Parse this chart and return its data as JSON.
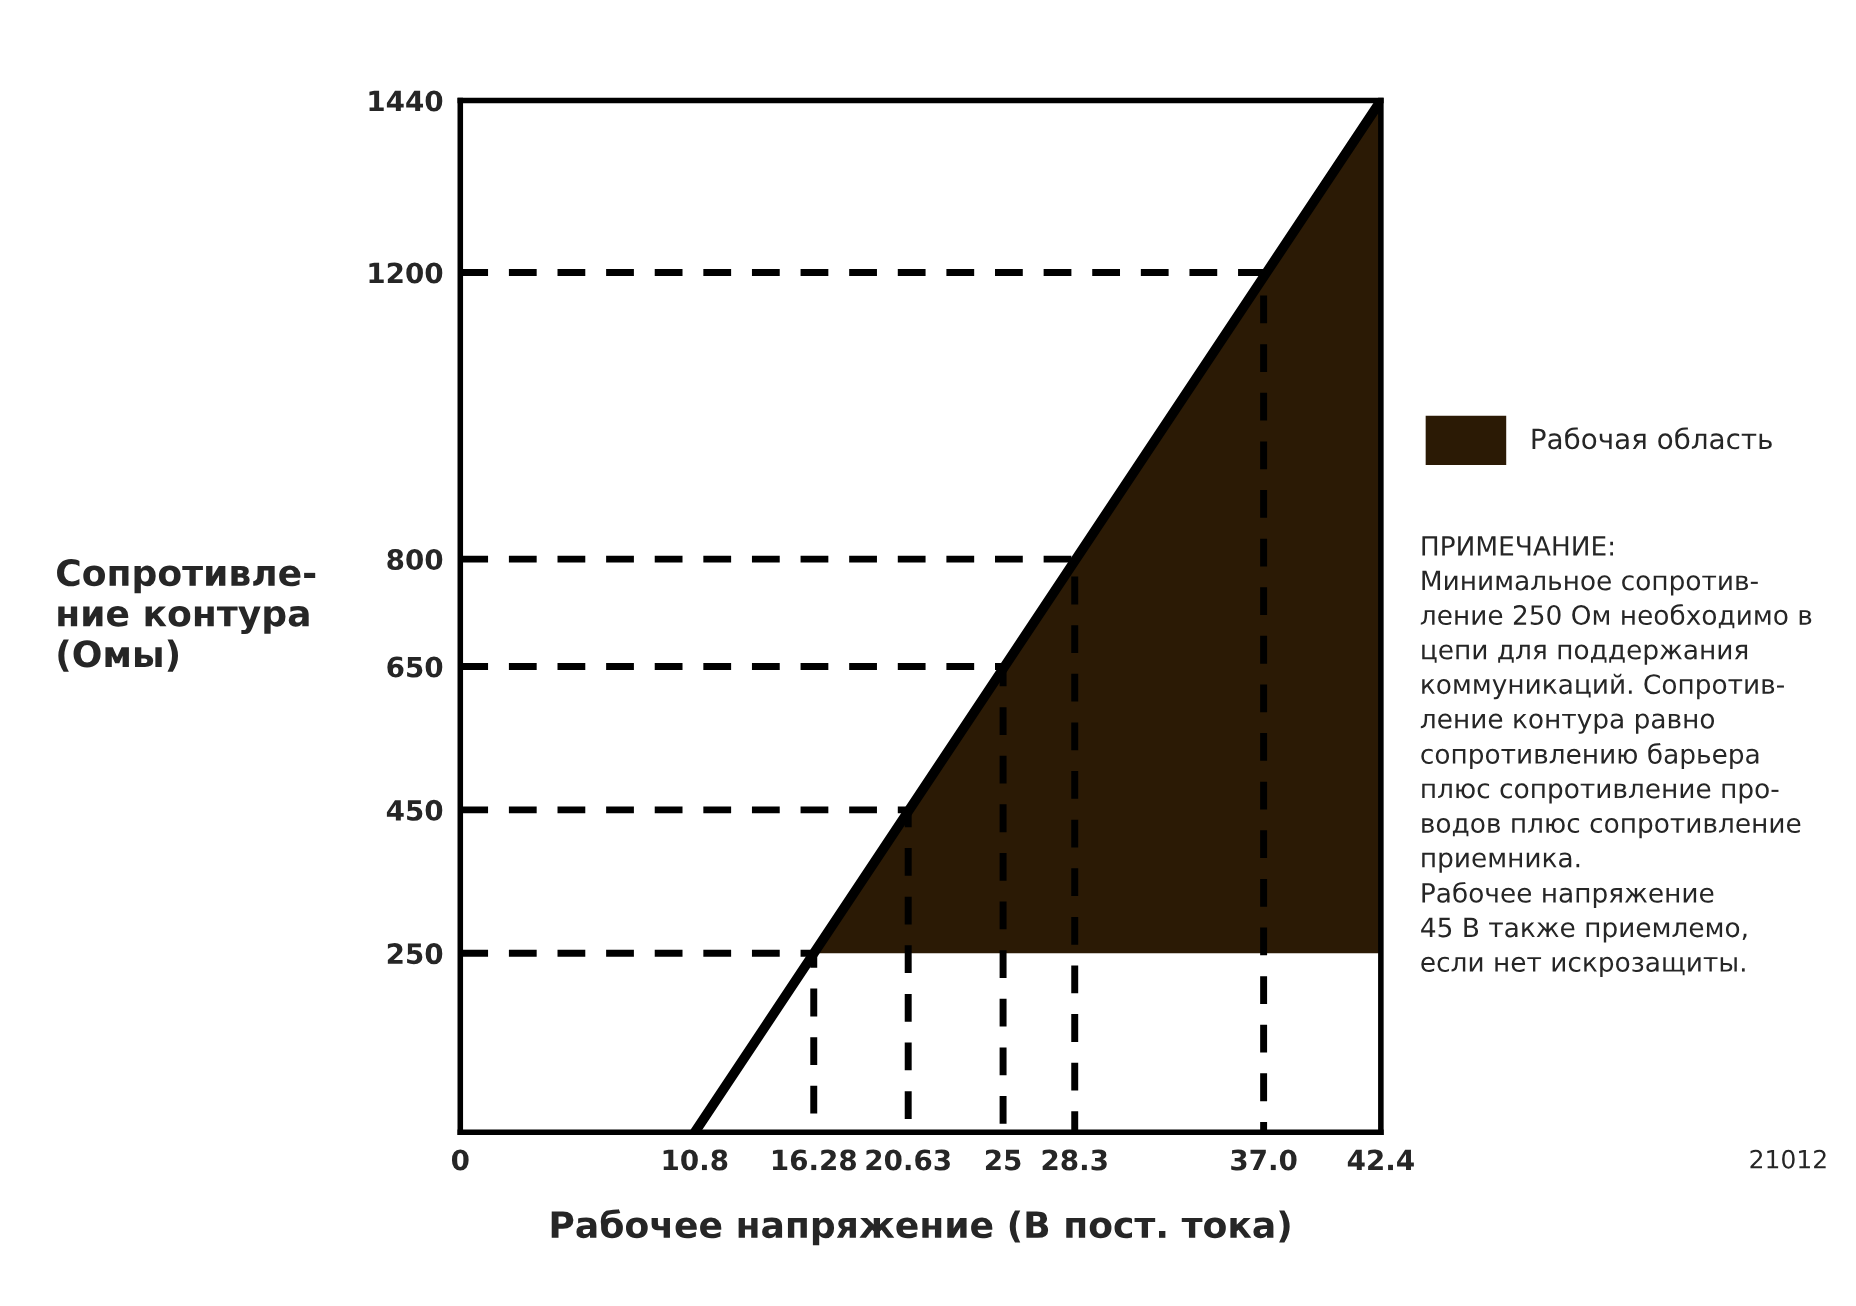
{
  "chart_data": {
    "type": "line",
    "xlabel": "Рабочее напряжение (В пост. тока)",
    "ylabel": "Сопротивле-\nние контура\n(Омы)",
    "xlim": [
      0,
      42.4
    ],
    "ylim": [
      0,
      1440
    ],
    "xticks": [
      0,
      10.8,
      16.28,
      20.63,
      25,
      {
        "value": 28.3,
        "label": "28.3"
      },
      {
        "value": 37,
        "label": "37.0"
      },
      42.4
    ],
    "yticks": [
      250,
      450,
      650,
      800,
      1200,
      1440
    ],
    "grid": false,
    "legend": "right",
    "marker": "none",
    "series": [
      {
        "name": "Рабочая область",
        "type": "area",
        "color": "#2b1a05",
        "x": [
          16.28,
          42.4,
          42.4
        ],
        "values": [
          250,
          1440,
          250
        ]
      },
      {
        "color": "#000000",
        "line_style": "solid",
        "x": [
          10.8,
          42.4
        ],
        "values": [
          0,
          1440
        ]
      },
      {
        "type": "line",
        "color": "#000000",
        "line_style": "dashed",
        "x": [
          0,
          16.28,
          16.28
        ],
        "values": [
          250,
          250,
          0
        ]
      },
      {
        "type": "line",
        "color": "#000000",
        "line_style": "dashed",
        "x": [
          0,
          20.63,
          20.63
        ],
        "values": [
          450,
          450,
          0
        ]
      },
      {
        "type": "line",
        "color": "#000000",
        "line_style": "dashed",
        "x": [
          0,
          25,
          25
        ],
        "values": [
          650,
          650,
          0
        ]
      },
      {
        "type": "line",
        "color": "#000000",
        "line_style": "dashed",
        "x": [
          0,
          28.3,
          28.3
        ],
        "values": [
          800,
          800,
          0
        ]
      },
      {
        "type": "line",
        "color": "#000000",
        "line_style": "dashed",
        "x": [
          0,
          37,
          37
        ],
        "values": [
          1200,
          1200,
          0
        ]
      }
    ],
    "annotations": [
      "ПРИМЕЧАНИЕ:\nМинимальное сопротив-\nление 250 Ом необходимо в\nцепи для поддержания\nкоммуникаций. Сопротив-\nление контура равно\nсопротивлению барьера\nплюс сопротивление про-\nводов плюс сопротивление\nприемника.\nРабочее напряжение\n45 В также приемлемо,\nесли нет искрозащиты.",
      "21012"
    ]
  }
}
